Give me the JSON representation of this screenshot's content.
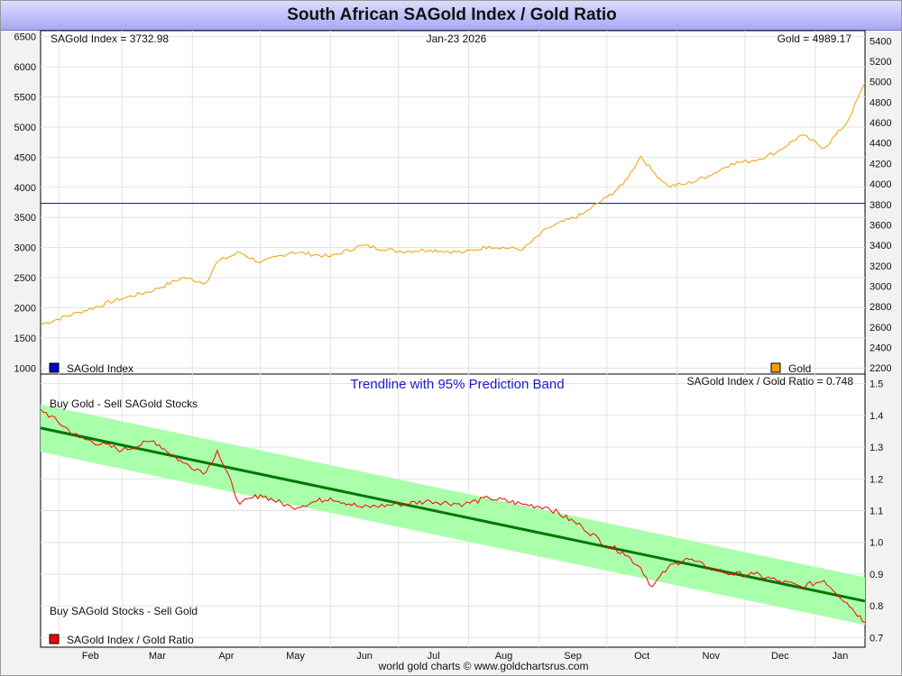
{
  "page": {
    "title": "South African SAGold Index / Gold Ratio",
    "footer": "world gold charts © www.goldchartsrus.com"
  },
  "chart_data": [
    {
      "type": "line",
      "panel": "top",
      "header_left": "SAGold Index = 3732.98",
      "header_center": "Jan-23  2026",
      "header_right": "Gold = 4989.17",
      "x": {
        "range": [
          "2025-01-24",
          "2026-01-23"
        ],
        "tick_labels": [
          "Feb",
          "Mar",
          "Apr",
          "May",
          "Jun",
          "Jul",
          "Aug",
          "Sep",
          "Oct",
          "Nov",
          "Dec",
          "Jan"
        ]
      },
      "left_axis": {
        "range": [
          900,
          6600
        ],
        "ticks": [
          1000,
          1500,
          2000,
          2500,
          3000,
          3500,
          4000,
          4500,
          5000,
          5500,
          6000,
          6500
        ]
      },
      "right_axis": {
        "range": [
          2140,
          5500
        ],
        "ticks": [
          2200,
          2400,
          2600,
          2800,
          3000,
          3200,
          3400,
          3600,
          3800,
          4000,
          4200,
          4400,
          4600,
          4800,
          5000,
          5200,
          5400
        ]
      },
      "grid": true,
      "series": [
        {
          "name": "SAGold Index",
          "axis": "left",
          "color": "#0000cc",
          "style": "horizontal reference at latest value",
          "values": [
            3732.98
          ]
        },
        {
          "name": "Gold",
          "axis": "right",
          "color": "#f0a000",
          "x": [
            "2025-01-24",
            "2025-02-10",
            "2025-03-01",
            "2025-03-15",
            "2025-03-28",
            "2025-04-07",
            "2025-04-12",
            "2025-04-22",
            "2025-05-01",
            "2025-05-15",
            "2025-06-01",
            "2025-06-15",
            "2025-07-01",
            "2025-07-15",
            "2025-07-30",
            "2025-08-10",
            "2025-08-25",
            "2025-09-05",
            "2025-09-20",
            "2025-10-01",
            "2025-10-08",
            "2025-10-16",
            "2025-10-21",
            "2025-10-28",
            "2025-11-05",
            "2025-11-15",
            "2025-11-25",
            "2025-12-05",
            "2025-12-15",
            "2025-12-26",
            "2026-01-05",
            "2026-01-15",
            "2026-01-23"
          ],
          "values": [
            2625,
            2745,
            2880,
            2960,
            3085,
            3030,
            3240,
            3330,
            3230,
            3335,
            3290,
            3400,
            3340,
            3355,
            3330,
            3390,
            3360,
            3570,
            3700,
            3870,
            3990,
            4270,
            4130,
            3980,
            4000,
            4080,
            4200,
            4230,
            4310,
            4480,
            4350,
            4600,
            4989
          ]
        }
      ],
      "legend": {
        "left": "SAGold Index",
        "right": "Gold",
        "placement": "bottom-left / bottom-right"
      }
    },
    {
      "type": "line",
      "panel": "bottom",
      "header_center": "Trendline with 95% Prediction Band",
      "header_right": "SAGold Index / Gold Ratio = 0.748",
      "upper_note": "Buy Gold - Sell SAGold Stocks",
      "lower_note": "Buy SAGold Stocks - Sell Gold",
      "right_axis": {
        "range": [
          0.67,
          1.53
        ],
        "ticks": [
          0.7,
          0.8,
          0.9,
          1.0,
          1.1,
          1.2,
          1.3,
          1.4,
          1.5
        ]
      },
      "trendline": {
        "start": 1.36,
        "end": 0.815,
        "band_halfwidth": 0.075,
        "color": "#007700",
        "band_color": "#aaffaa"
      },
      "series": [
        {
          "name": "SAGold Index / Gold Ratio",
          "color": "#ff0000",
          "x": [
            "2025-01-24",
            "2025-02-10",
            "2025-03-01",
            "2025-03-15",
            "2025-03-28",
            "2025-04-07",
            "2025-04-12",
            "2025-04-22",
            "2025-05-01",
            "2025-05-15",
            "2025-06-01",
            "2025-06-15",
            "2025-07-01",
            "2025-07-15",
            "2025-07-30",
            "2025-08-10",
            "2025-08-25",
            "2025-09-05",
            "2025-09-20",
            "2025-10-01",
            "2025-10-08",
            "2025-10-16",
            "2025-10-21",
            "2025-10-28",
            "2025-11-05",
            "2025-11-15",
            "2025-11-25",
            "2025-12-05",
            "2025-12-15",
            "2025-12-26",
            "2026-01-05",
            "2026-01-15",
            "2026-01-23"
          ],
          "values": [
            1.42,
            1.33,
            1.29,
            1.32,
            1.25,
            1.22,
            1.29,
            1.12,
            1.15,
            1.11,
            1.14,
            1.11,
            1.12,
            1.13,
            1.12,
            1.14,
            1.12,
            1.11,
            1.05,
            0.99,
            0.97,
            0.92,
            0.86,
            0.92,
            0.95,
            0.92,
            0.9,
            0.9,
            0.88,
            0.86,
            0.88,
            0.81,
            0.748
          ]
        }
      ],
      "legend": {
        "left": "SAGold Index / Gold Ratio",
        "placement": "bottom-left"
      }
    }
  ]
}
